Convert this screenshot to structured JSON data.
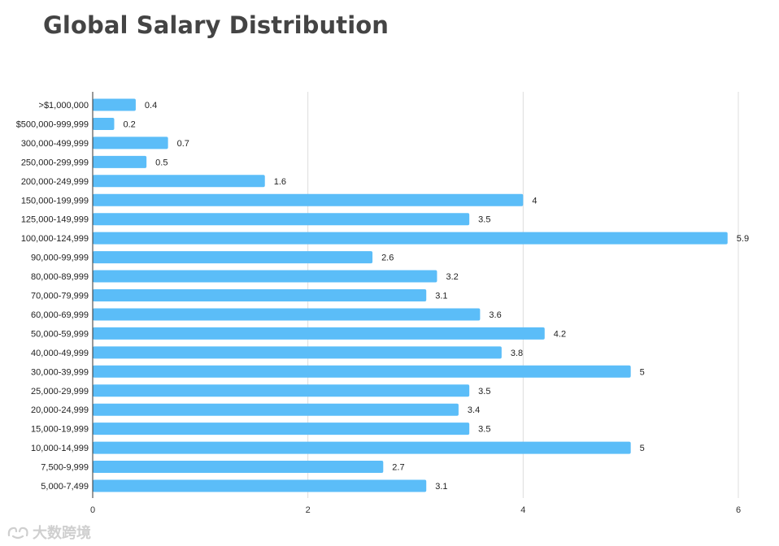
{
  "chart_data": {
    "type": "bar",
    "orientation": "horizontal",
    "title": "Global Salary Distribution",
    "xlabel": "",
    "ylabel": "",
    "xlim": [
      0,
      6
    ],
    "x_ticks": [
      "0",
      "2",
      "4",
      "6"
    ],
    "grid": true,
    "bar_color": "#5bbdf8",
    "categories": [
      ">$1,000,000",
      "$500,000-999,999",
      "300,000-499,999",
      "250,000-299,999",
      "200,000-249,999",
      "150,000-199,999",
      "125,000-149,999",
      "100,000-124,999",
      "90,000-99,999",
      "80,000-89,999",
      "70,000-79,999",
      "60,000-69,999",
      "50,000-59,999",
      "40,000-49,999",
      "30,000-39,999",
      "25,000-29,999",
      "20,000-24,999",
      "15,000-19,999",
      "10,000-14,999",
      "7,500-9,999",
      "5,000-7,499"
    ],
    "values": [
      0.4,
      0.2,
      0.7,
      0.5,
      1.6,
      4,
      3.5,
      5.9,
      2.6,
      3.2,
      3.1,
      3.6,
      4.2,
      3.8,
      5,
      3.5,
      3.4,
      3.5,
      5,
      2.7,
      3.1
    ],
    "value_labels": [
      "0.4",
      "0.2",
      "0.7",
      "0.5",
      "1.6",
      "4",
      "3.5",
      "5.9",
      "2.6",
      "3.2",
      "3.1",
      "3.6",
      "4.2",
      "3.8",
      "5",
      "3.5",
      "3.4",
      "3.5",
      "5",
      "2.7",
      "3.1"
    ]
  },
  "watermark": {
    "text": "大数跨境",
    "icon": "watermark-logo-icon"
  }
}
